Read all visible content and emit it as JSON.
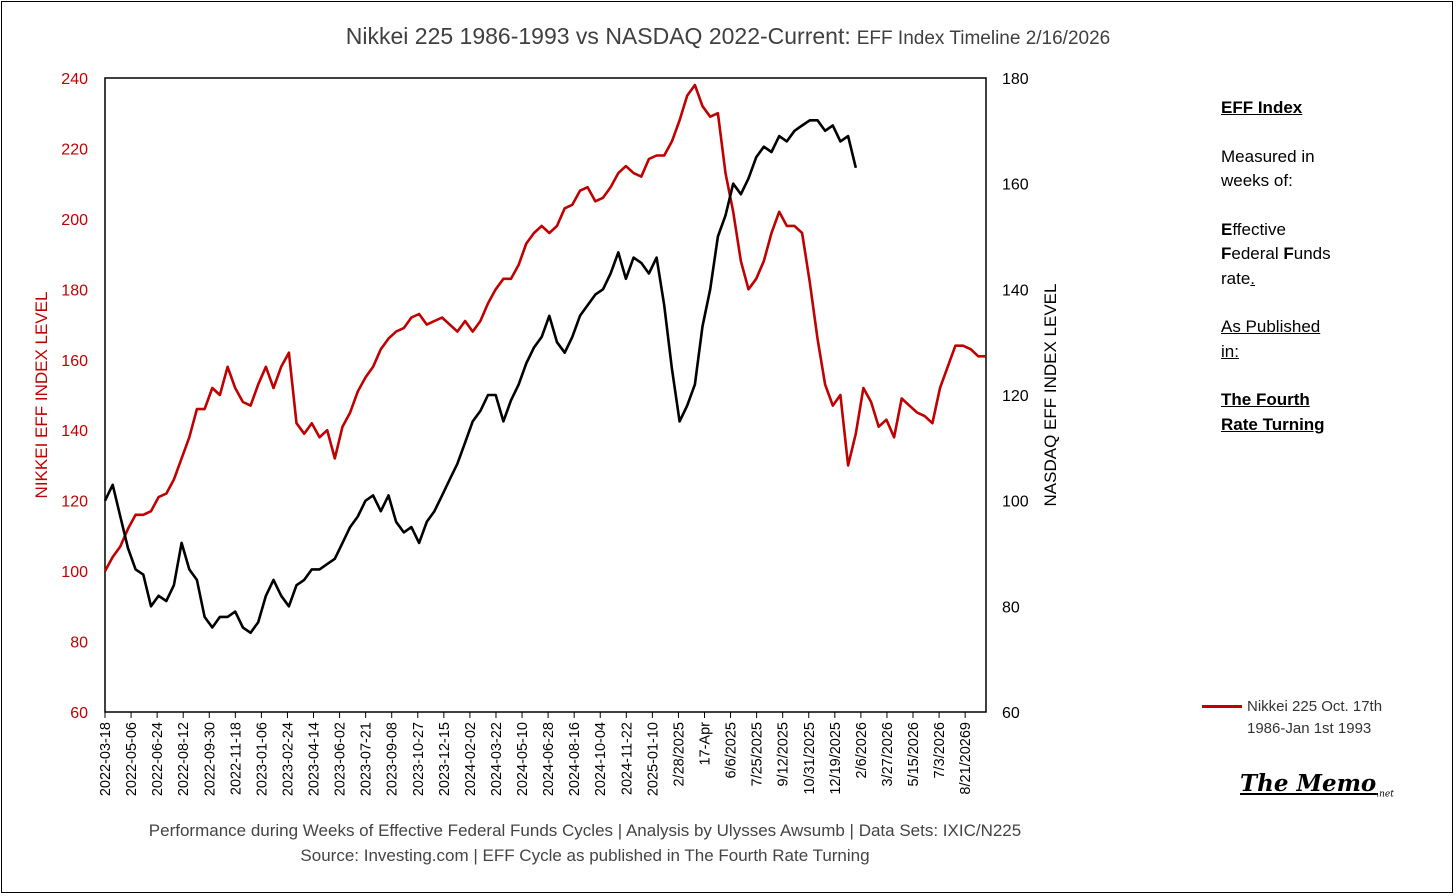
{
  "chart_data": {
    "type": "line",
    "title": "Nikkei 225 1986-1993 vs NASDAQ 2022-Current:",
    "subtitle": "EFF Index Timeline 2/16/2026",
    "ylabel_left": "NIKKEI EFF INDEX LEVEL",
    "ylabel_right": "NASDAQ EFF INDEX LEVEL",
    "ylim_left": [
      60,
      240
    ],
    "ylim_right": [
      60,
      180
    ],
    "yticks_left": [
      "60",
      "80",
      "100",
      "120",
      "140",
      "160",
      "180",
      "200",
      "220",
      "240"
    ],
    "yticks_right": [
      "60",
      "80",
      "100",
      "120",
      "140",
      "160",
      "180"
    ],
    "xticks": [
      "2022-03-18",
      "2022-05-06",
      "2022-06-24",
      "2022-08-12",
      "2022-09-30",
      "2022-11-18",
      "2023-01-06",
      "2023-02-24",
      "2023-04-14",
      "2023-06-02",
      "2023-07-21",
      "2023-09-08",
      "2023-10-27",
      "2023-12-15",
      "2024-02-02",
      "2024-03-22",
      "2024-05-10",
      "2024-06-28",
      "2024-08-16",
      "2024-10-04",
      "2024-11-22",
      "2025-01-10",
      "2/28/2025",
      "17-Apr",
      "6/6/2025",
      "7/25/2025",
      "9/12/2025",
      "10/31/2025",
      "12/19/2025",
      "2/6/2026",
      "3/27/2026",
      "5/15/2026",
      "7/3/2026",
      "8/21/20269"
    ],
    "x_weeks": 230,
    "grid": false,
    "legend": "right",
    "series": [
      {
        "name": "Nikkei 225 Oct. 17th 1986-Jan 1st 1993",
        "axis": "left",
        "color": "#c00000",
        "points": [
          [
            0,
            100
          ],
          [
            2,
            104
          ],
          [
            4,
            107
          ],
          [
            6,
            112
          ],
          [
            8,
            116
          ],
          [
            10,
            116
          ],
          [
            12,
            117
          ],
          [
            14,
            121
          ],
          [
            16,
            122
          ],
          [
            18,
            126
          ],
          [
            20,
            132
          ],
          [
            22,
            138
          ],
          [
            24,
            146
          ],
          [
            26,
            146
          ],
          [
            28,
            152
          ],
          [
            30,
            150
          ],
          [
            32,
            158
          ],
          [
            34,
            152
          ],
          [
            36,
            148
          ],
          [
            38,
            147
          ],
          [
            40,
            153
          ],
          [
            42,
            158
          ],
          [
            44,
            152
          ],
          [
            46,
            158
          ],
          [
            48,
            162
          ],
          [
            50,
            142
          ],
          [
            52,
            139
          ],
          [
            54,
            142
          ],
          [
            56,
            138
          ],
          [
            58,
            140
          ],
          [
            60,
            132
          ],
          [
            62,
            141
          ],
          [
            64,
            145
          ],
          [
            66,
            151
          ],
          [
            68,
            155
          ],
          [
            70,
            158
          ],
          [
            72,
            163
          ],
          [
            74,
            166
          ],
          [
            76,
            168
          ],
          [
            78,
            169
          ],
          [
            80,
            172
          ],
          [
            82,
            173
          ],
          [
            84,
            170
          ],
          [
            86,
            171
          ],
          [
            88,
            172
          ],
          [
            90,
            170
          ],
          [
            92,
            168
          ],
          [
            94,
            171
          ],
          [
            96,
            168
          ],
          [
            98,
            171
          ],
          [
            100,
            176
          ],
          [
            102,
            180
          ],
          [
            104,
            183
          ],
          [
            106,
            183
          ],
          [
            108,
            187
          ],
          [
            110,
            193
          ],
          [
            112,
            196
          ],
          [
            114,
            198
          ],
          [
            116,
            196
          ],
          [
            118,
            198
          ],
          [
            120,
            203
          ],
          [
            122,
            204
          ],
          [
            124,
            208
          ],
          [
            126,
            209
          ],
          [
            128,
            205
          ],
          [
            130,
            206
          ],
          [
            132,
            209
          ],
          [
            134,
            213
          ],
          [
            136,
            215
          ],
          [
            138,
            213
          ],
          [
            140,
            212
          ],
          [
            142,
            217
          ],
          [
            144,
            218
          ],
          [
            146,
            218
          ],
          [
            148,
            222
          ],
          [
            150,
            228
          ],
          [
            152,
            235
          ],
          [
            154,
            238
          ],
          [
            156,
            232
          ],
          [
            158,
            229
          ],
          [
            160,
            230
          ],
          [
            162,
            213
          ],
          [
            164,
            202
          ],
          [
            166,
            188
          ],
          [
            168,
            180
          ],
          [
            170,
            183
          ],
          [
            172,
            188
          ],
          [
            174,
            196
          ],
          [
            176,
            202
          ],
          [
            178,
            198
          ],
          [
            180,
            198
          ],
          [
            182,
            196
          ],
          [
            184,
            182
          ],
          [
            186,
            166
          ],
          [
            188,
            153
          ],
          [
            190,
            147
          ],
          [
            192,
            150
          ],
          [
            194,
            130
          ],
          [
            196,
            139
          ],
          [
            198,
            152
          ],
          [
            200,
            148
          ],
          [
            202,
            141
          ],
          [
            204,
            143
          ],
          [
            206,
            138
          ],
          [
            208,
            149
          ],
          [
            210,
            147
          ],
          [
            212,
            145
          ],
          [
            214,
            144
          ],
          [
            216,
            142
          ],
          [
            218,
            152
          ],
          [
            220,
            158
          ],
          [
            222,
            164
          ],
          [
            224,
            164
          ],
          [
            226,
            163
          ],
          [
            228,
            161
          ],
          [
            230,
            161
          ]
        ]
      },
      {
        "name": "NASDAQ",
        "axis": "right",
        "color": "#000000",
        "points": [
          [
            0,
            100
          ],
          [
            2,
            103
          ],
          [
            4,
            97
          ],
          [
            6,
            91
          ],
          [
            8,
            87
          ],
          [
            10,
            86
          ],
          [
            12,
            80
          ],
          [
            14,
            82
          ],
          [
            16,
            81
          ],
          [
            18,
            84
          ],
          [
            20,
            92
          ],
          [
            22,
            87
          ],
          [
            24,
            85
          ],
          [
            26,
            78
          ],
          [
            28,
            76
          ],
          [
            30,
            78
          ],
          [
            32,
            78
          ],
          [
            34,
            79
          ],
          [
            36,
            76
          ],
          [
            38,
            75
          ],
          [
            40,
            77
          ],
          [
            42,
            82
          ],
          [
            44,
            85
          ],
          [
            46,
            82
          ],
          [
            48,
            80
          ],
          [
            50,
            84
          ],
          [
            52,
            85
          ],
          [
            54,
            87
          ],
          [
            56,
            87
          ],
          [
            58,
            88
          ],
          [
            60,
            89
          ],
          [
            62,
            92
          ],
          [
            64,
            95
          ],
          [
            66,
            97
          ],
          [
            68,
            100
          ],
          [
            70,
            101
          ],
          [
            72,
            98
          ],
          [
            74,
            101
          ],
          [
            76,
            96
          ],
          [
            78,
            94
          ],
          [
            80,
            95
          ],
          [
            82,
            92
          ],
          [
            84,
            96
          ],
          [
            86,
            98
          ],
          [
            88,
            101
          ],
          [
            90,
            104
          ],
          [
            92,
            107
          ],
          [
            94,
            111
          ],
          [
            96,
            115
          ],
          [
            98,
            117
          ],
          [
            100,
            120
          ],
          [
            102,
            120
          ],
          [
            104,
            115
          ],
          [
            106,
            119
          ],
          [
            108,
            122
          ],
          [
            110,
            126
          ],
          [
            112,
            129
          ],
          [
            114,
            131
          ],
          [
            116,
            135
          ],
          [
            118,
            130
          ],
          [
            120,
            128
          ],
          [
            122,
            131
          ],
          [
            124,
            135
          ],
          [
            126,
            137
          ],
          [
            128,
            139
          ],
          [
            130,
            140
          ],
          [
            132,
            143
          ],
          [
            134,
            147
          ],
          [
            136,
            142
          ],
          [
            138,
            146
          ],
          [
            140,
            145
          ],
          [
            142,
            143
          ],
          [
            144,
            146
          ],
          [
            146,
            137
          ],
          [
            148,
            125
          ],
          [
            150,
            115
          ],
          [
            152,
            118
          ],
          [
            154,
            122
          ],
          [
            156,
            133
          ],
          [
            158,
            140
          ],
          [
            160,
            150
          ],
          [
            162,
            154
          ],
          [
            164,
            160
          ],
          [
            166,
            158
          ],
          [
            168,
            161
          ],
          [
            170,
            165
          ],
          [
            172,
            167
          ],
          [
            174,
            166
          ],
          [
            176,
            169
          ],
          [
            178,
            168
          ],
          [
            180,
            170
          ],
          [
            182,
            171
          ],
          [
            184,
            172
          ],
          [
            186,
            172
          ],
          [
            188,
            170
          ],
          [
            190,
            171
          ],
          [
            192,
            168
          ],
          [
            194,
            169
          ],
          [
            196,
            163
          ]
        ]
      }
    ]
  },
  "sidebar": {
    "heading": "EFF Index",
    "measured_line1": "Measured in",
    "measured_line2": "weeks of:",
    "eff_e": "E",
    "eff_1": "ffective",
    "eff_f": "F",
    "eff_2": "ederal ",
    "eff_f2": "F",
    "eff_3": "unds",
    "eff_4": "rate",
    "eff_dot": ".",
    "published_1": "As Published",
    "published_2": "in:",
    "book_1": "The Fourth",
    "book_2": "Rate Turning"
  },
  "legend": {
    "line1": "Nikkei 225 Oct. 17th",
    "line2": "1986-Jan 1st 1993"
  },
  "logo": {
    "text": "The Memo",
    "suffix": ".net"
  },
  "footer": {
    "line1": "Performance during Weeks of Effective Federal Funds Cycles  |  Analysis  by Ulysses Awsumb  |  Data Sets: IXIC/N225",
    "line2": "Source: Investing.com  |  EFF Cycle as published in The Fourth Rate Turning"
  },
  "colors": {
    "nikkei": "#c00000",
    "nasdaq": "#000000",
    "left_axis_text": "#c00000",
    "text": "#404040"
  }
}
